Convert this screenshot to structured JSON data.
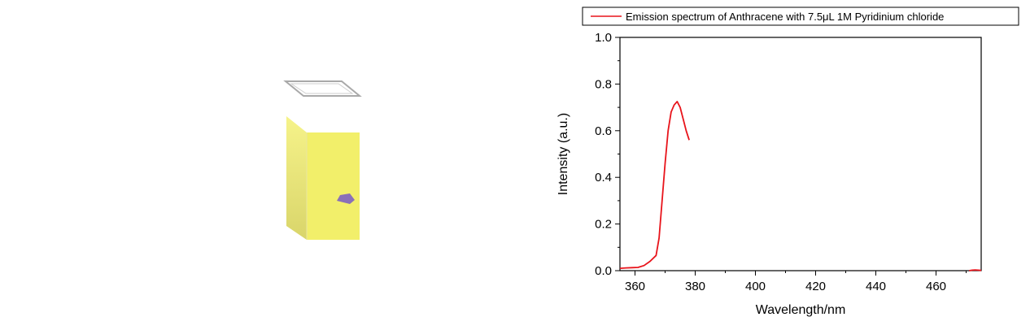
{
  "chart_data": {
    "type": "line",
    "title": "",
    "xlabel": "Wavelength/nm",
    "ylabel": "Intensity (a.u.)",
    "xlim": [
      355,
      475
    ],
    "ylim": [
      0.0,
      1.0
    ],
    "x_ticks": [
      360,
      380,
      400,
      420,
      440,
      460
    ],
    "y_ticks": [
      0.0,
      0.2,
      0.4,
      0.6,
      0.8,
      1.0
    ],
    "x_tick_labels": [
      "360",
      "380",
      "400",
      "420",
      "440",
      "460"
    ],
    "y_tick_labels": [
      "0.0",
      "0.2",
      "0.4",
      "0.6",
      "0.8",
      "1.0"
    ],
    "grid": false,
    "legend_position": "top",
    "series": [
      {
        "name": "Emission spectrum of Anthracene with 7.5μL 1M Pyridinium chloride",
        "color": "#e8141b",
        "x": [
          355,
          357,
          359,
          361,
          363,
          365,
          367,
          368,
          369,
          370,
          371,
          372,
          373,
          374,
          375,
          376,
          377,
          378
        ],
        "y": [
          0.01,
          0.012,
          0.013,
          0.014,
          0.022,
          0.04,
          0.065,
          0.14,
          0.3,
          0.46,
          0.6,
          0.68,
          0.71,
          0.725,
          0.7,
          0.65,
          0.6,
          0.56
        ]
      },
      {
        "name": "",
        "color": "#e8141b",
        "x": [
          471,
          472,
          473,
          474,
          475
        ],
        "y": [
          0.0,
          0.002,
          0.003,
          0.002,
          0.001
        ]
      }
    ]
  },
  "illustration": {
    "cuvette_color": "#f2ef6a",
    "sample_marker_color": "#8a70b8"
  }
}
